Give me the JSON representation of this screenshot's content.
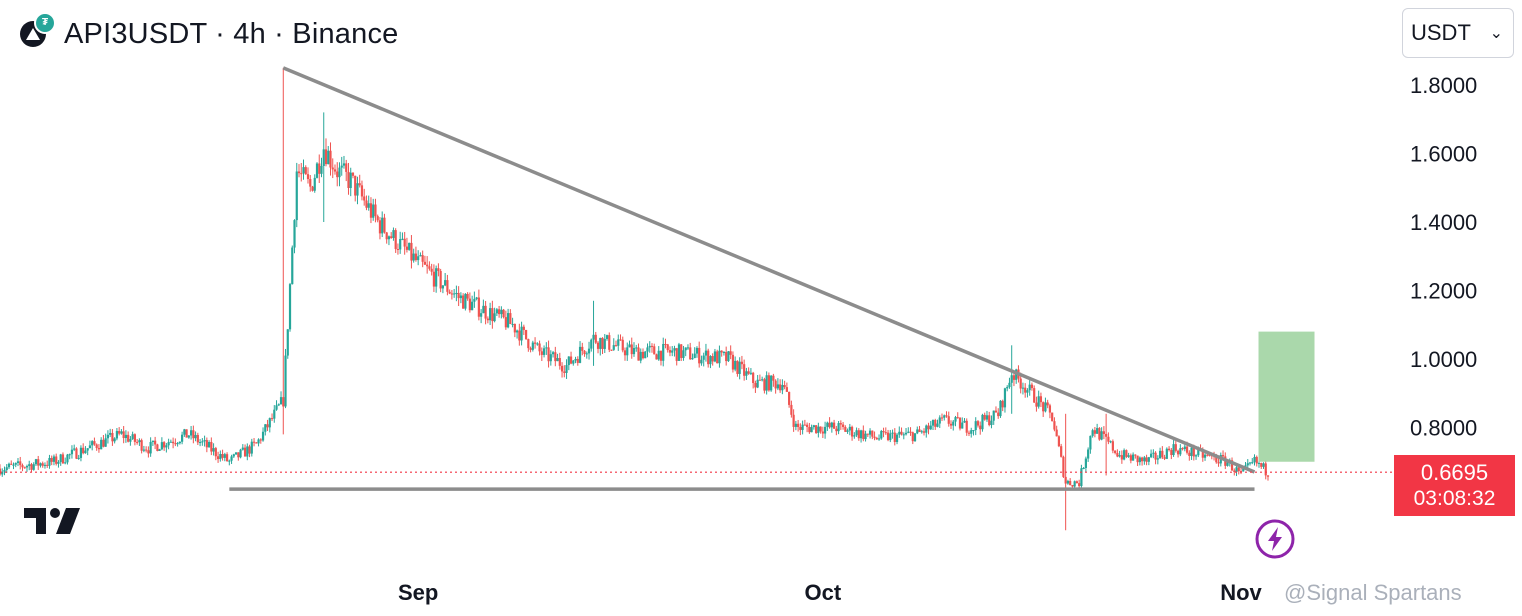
{
  "header": {
    "title": "API3USDT · 4h · Binance",
    "logo_icon": "api3-coin-icon"
  },
  "currency_select": {
    "value": "USDT"
  },
  "price_label": {
    "price": "0.6695",
    "countdown": "03:08:32"
  },
  "watermark": "@Signal Spartans",
  "colors": {
    "up": "#26a69a",
    "down": "#ef5350",
    "trendline": "#8c8c8c",
    "target_zone": "#a5d6a7",
    "price_line": "#f23645",
    "bolt": "#8e24aa"
  },
  "chart_data": {
    "type": "candlestick",
    "interval": "4h",
    "x_tick_labels": [
      "Sep",
      "Oct",
      "Nov"
    ],
    "y_tick_labels": [
      "1.8000",
      "1.6000",
      "1.4000",
      "1.2000",
      "1.0000",
      "0.8000"
    ],
    "y_ticks": [
      1.8,
      1.6,
      1.4,
      1.2,
      1.0,
      0.8
    ],
    "ylim": [
      0.4,
      1.9
    ],
    "x_range": [
      "2023-08-01",
      "2023-11-03"
    ],
    "current_price": 0.6695,
    "price_path": [
      [
        "2023-08-01",
        0.68
      ],
      [
        "2023-08-05",
        0.7
      ],
      [
        "2023-08-10",
        0.78
      ],
      [
        "2023-08-12",
        0.74
      ],
      [
        "2023-08-15",
        0.78
      ],
      [
        "2023-08-18",
        0.7
      ],
      [
        "2023-08-20",
        0.75
      ],
      [
        "2023-08-22",
        0.88
      ],
      [
        "2023-08-23",
        1.55
      ],
      [
        "2023-08-24",
        1.5
      ],
      [
        "2023-08-25",
        1.62
      ],
      [
        "2023-08-26",
        1.55
      ],
      [
        "2023-08-27",
        1.52
      ],
      [
        "2023-08-29",
        1.4
      ],
      [
        "2023-09-01",
        1.28
      ],
      [
        "2023-09-04",
        1.18
      ],
      [
        "2023-09-06",
        1.14
      ],
      [
        "2023-09-08",
        1.1
      ],
      [
        "2023-09-10",
        1.02
      ],
      [
        "2023-09-12",
        0.98
      ],
      [
        "2023-09-14",
        1.06
      ],
      [
        "2023-09-17",
        1.02
      ],
      [
        "2023-09-20",
        1.02
      ],
      [
        "2023-09-24",
        1.0
      ],
      [
        "2023-09-26",
        0.93
      ],
      [
        "2023-09-28",
        0.93
      ],
      [
        "2023-09-29",
        0.8
      ],
      [
        "2023-10-02",
        0.8
      ],
      [
        "2023-10-05",
        0.77
      ],
      [
        "2023-10-08",
        0.78
      ],
      [
        "2023-10-10",
        0.82
      ],
      [
        "2023-10-12",
        0.8
      ],
      [
        "2023-10-14",
        0.84
      ],
      [
        "2023-10-15",
        0.96
      ],
      [
        "2023-10-16",
        0.92
      ],
      [
        "2023-10-18",
        0.83
      ],
      [
        "2023-10-19",
        0.64
      ],
      [
        "2023-10-20",
        0.64
      ],
      [
        "2023-10-21",
        0.8
      ],
      [
        "2023-10-23",
        0.72
      ],
      [
        "2023-10-25",
        0.7
      ],
      [
        "2023-10-27",
        0.74
      ],
      [
        "2023-10-29",
        0.72
      ],
      [
        "2023-10-31",
        0.7
      ],
      [
        "2023-11-01",
        0.66
      ],
      [
        "2023-11-02",
        0.7
      ],
      [
        "2023-11-03",
        0.6695
      ]
    ],
    "spikes": [
      {
        "date": "2023-08-22",
        "high": 1.85,
        "low": 0.78
      },
      {
        "date": "2023-08-25",
        "high": 1.72,
        "low": 1.4
      },
      {
        "date": "2023-09-14",
        "high": 1.17,
        "low": 0.98
      },
      {
        "date": "2023-10-15",
        "high": 1.04,
        "low": 0.84
      },
      {
        "date": "2023-10-19",
        "high": 0.84,
        "low": 0.5
      },
      {
        "date": "2023-10-22",
        "high": 0.84,
        "low": 0.66
      }
    ],
    "annotations": [
      {
        "type": "trendline",
        "name": "descending-resistance",
        "points": [
          [
            "2023-08-22",
            1.85
          ],
          [
            "2023-11-02",
            0.67
          ]
        ]
      },
      {
        "type": "hline",
        "name": "support",
        "value": 0.62,
        "from": "2023-08-18",
        "to": "2023-11-02"
      },
      {
        "type": "target-zone",
        "from": "2023-11-02",
        "to": "2023-11-05",
        "low": 0.7,
        "high": 1.08
      }
    ]
  }
}
